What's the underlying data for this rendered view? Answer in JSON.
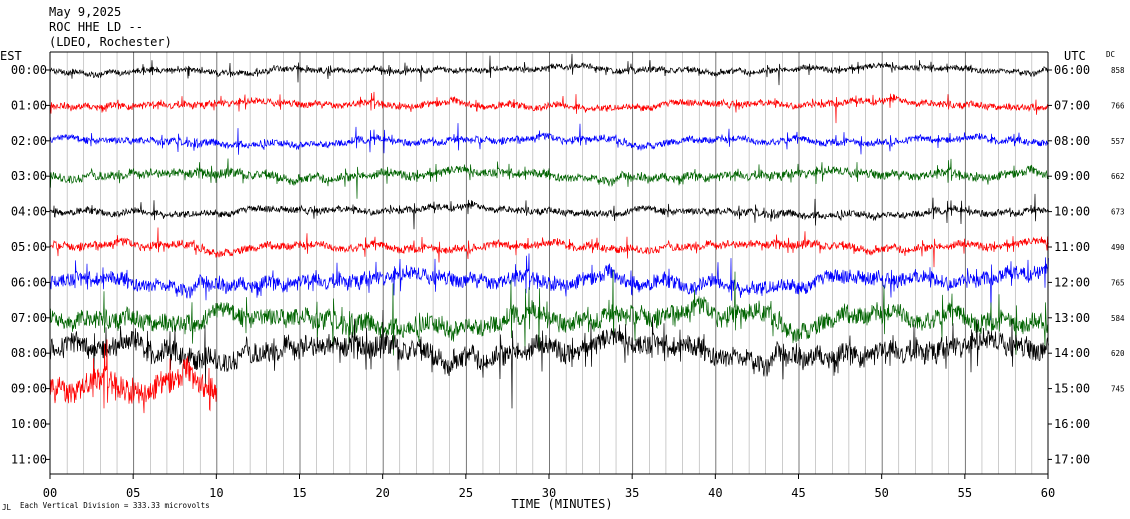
{
  "header": {
    "date": "May 9,2025",
    "station": "ROC HHE LD --",
    "network": "(LDEO, Rochester)"
  },
  "footer": {
    "scale_note": "Each Vertical Division = 333.33 microvolts",
    "corner_mark": "JL"
  },
  "chart_data": {
    "type": "line",
    "title": "",
    "xlabel": "TIME (MINUTES)",
    "ylabel_left": "EST",
    "ylabel_right": "UTC",
    "dc_label": "DC",
    "xlim": [
      0,
      60
    ],
    "x_ticks": [
      0,
      5,
      10,
      15,
      20,
      25,
      30,
      35,
      40,
      45,
      50,
      55,
      60
    ],
    "x_tick_labels": [
      "00",
      "05",
      "10",
      "15",
      "20",
      "25",
      "30",
      "35",
      "40",
      "45",
      "50",
      "55",
      "60"
    ],
    "grid": true,
    "colors": [
      "#000000",
      "#ff0000",
      "#0000ff",
      "#006400"
    ],
    "rows": [
      {
        "est": "00:00",
        "utc": "06:00",
        "dc": "858",
        "color": "#000000",
        "end_minute": 60,
        "amplitude": 0.3
      },
      {
        "est": "01:00",
        "utc": "07:00",
        "dc": "766",
        "color": "#ff0000",
        "end_minute": 60,
        "amplitude": 0.35
      },
      {
        "est": "02:00",
        "utc": "08:00",
        "dc": "557",
        "color": "#0000ff",
        "end_minute": 60,
        "amplitude": 0.35
      },
      {
        "est": "03:00",
        "utc": "09:00",
        "dc": "662",
        "color": "#006400",
        "end_minute": 60,
        "amplitude": 0.45
      },
      {
        "est": "04:00",
        "utc": "10:00",
        "dc": "673",
        "color": "#000000",
        "end_minute": 60,
        "amplitude": 0.35
      },
      {
        "est": "05:00",
        "utc": "11:00",
        "dc": "490",
        "color": "#ff0000",
        "end_minute": 60,
        "amplitude": 0.4
      },
      {
        "est": "06:00",
        "utc": "12:00",
        "dc": "765",
        "color": "#0000ff",
        "end_minute": 60,
        "amplitude": 0.75
      },
      {
        "est": "07:00",
        "utc": "13:00",
        "dc": "584",
        "color": "#006400",
        "end_minute": 60,
        "amplitude": 0.95
      },
      {
        "est": "08:00",
        "utc": "14:00",
        "dc": "620",
        "color": "#000000",
        "end_minute": 60,
        "amplitude": 1.1
      },
      {
        "est": "09:00",
        "utc": "15:00",
        "dc": "745",
        "color": "#ff0000",
        "end_minute": 10,
        "amplitude": 1.3
      },
      {
        "est": "10:00",
        "utc": "16:00",
        "dc": "",
        "color": "#0000ff",
        "end_minute": 0,
        "amplitude": 0
      },
      {
        "est": "11:00",
        "utc": "17:00",
        "dc": "",
        "color": "#006400",
        "end_minute": 0,
        "amplitude": 0
      }
    ]
  }
}
